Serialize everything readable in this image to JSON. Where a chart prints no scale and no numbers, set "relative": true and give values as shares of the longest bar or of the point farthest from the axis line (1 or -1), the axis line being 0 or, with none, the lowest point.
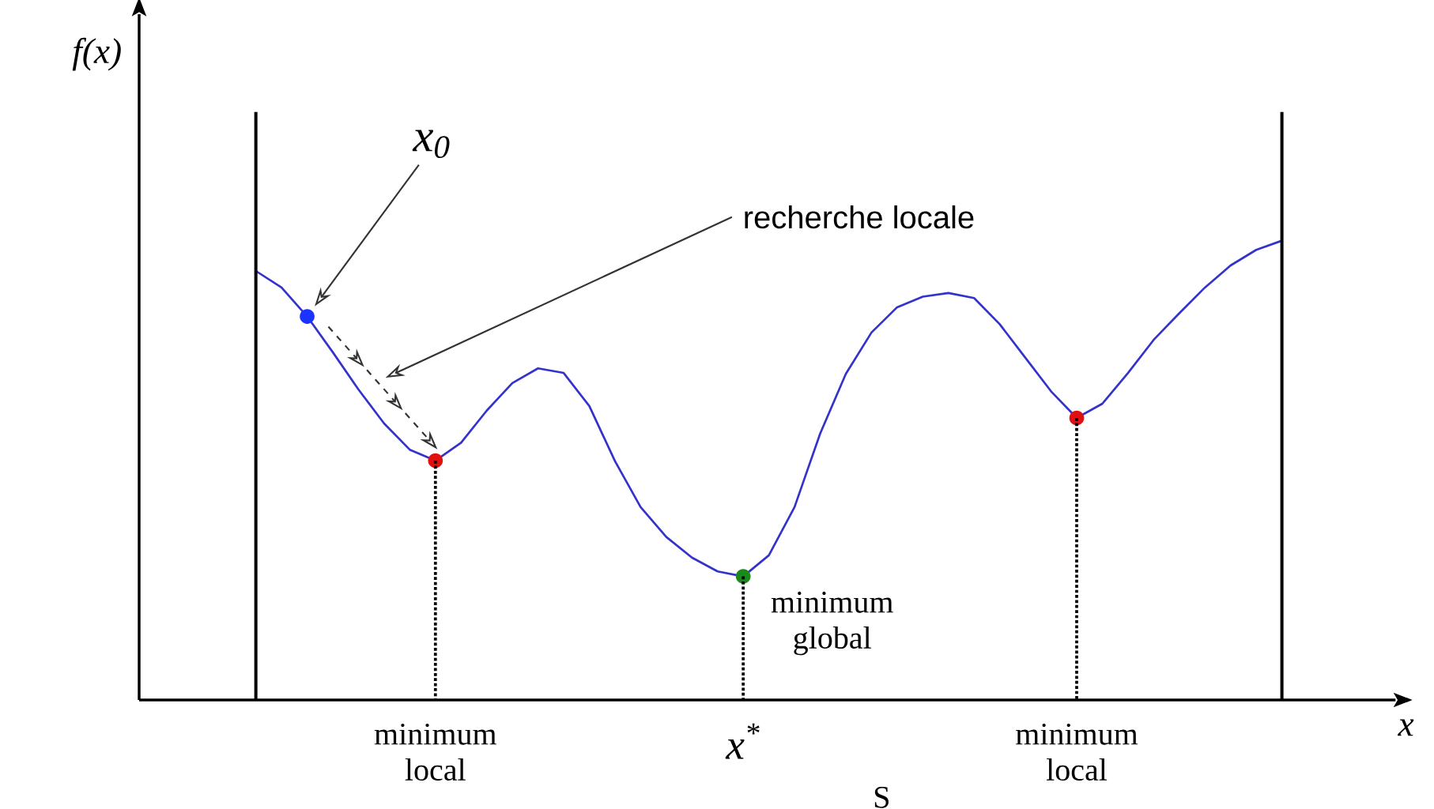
{
  "chart_data": {
    "type": "line",
    "relative": true,
    "xlabel": "x",
    "categories": [
      null,
      null,
      null,
      null,
      null,
      null,
      null,
      null,
      null,
      null,
      null,
      null,
      null,
      null,
      null,
      null,
      null,
      null,
      null,
      null,
      null,
      null,
      null,
      null,
      null,
      null,
      null,
      null,
      null,
      null,
      null,
      null,
      null,
      null,
      null,
      null,
      null,
      null,
      null,
      null,
      null
    ],
    "series": [
      {
        "color": "#3333cc",
        "values": [
          0.934,
          0.898,
          0.835,
          0.757,
          0.676,
          0.602,
          0.545,
          0.521,
          0.56,
          0.63,
          0.69,
          0.722,
          0.712,
          0.64,
          0.52,
          0.42,
          0.355,
          0.31,
          0.28,
          0.269,
          0.315,
          0.42,
          0.58,
          0.71,
          0.8,
          0.855,
          0.878,
          0.886,
          0.875,
          0.818,
          0.745,
          0.672,
          0.614,
          0.645,
          0.712,
          0.784,
          0.842,
          0.898,
          0.946,
          0.98,
          1
        ]
      }
    ],
    "annotations": [
      "x$_{0}$",
      "recherche locale",
      "minimum local",
      "x$^{*}$",
      "minimum global",
      "minimum local",
      "S",
      "f(x)"
    ]
  }
}
